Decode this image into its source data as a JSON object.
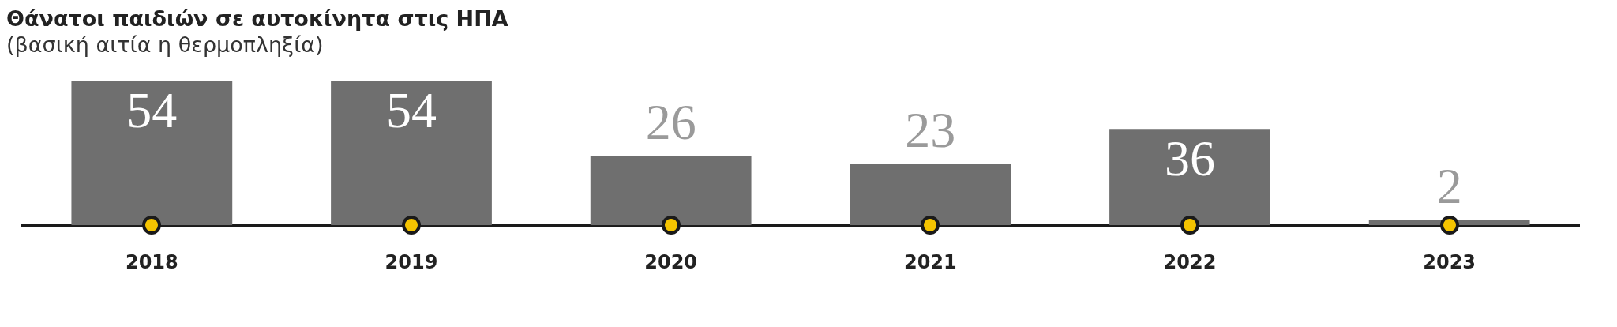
{
  "chart_data": {
    "type": "bar",
    "title": "Θάνατοι παιδιών σε αυτοκίνητα στις ΗΠΑ",
    "subtitle": "(βασική αιτία η θερμοπληξία)",
    "categories": [
      "2018",
      "2019",
      "2020",
      "2021",
      "2022",
      "2023"
    ],
    "values": [
      54,
      54,
      26,
      23,
      36,
      2
    ],
    "color": "#6f6f6f",
    "data_labels": true,
    "grid": false,
    "legend": false
  }
}
